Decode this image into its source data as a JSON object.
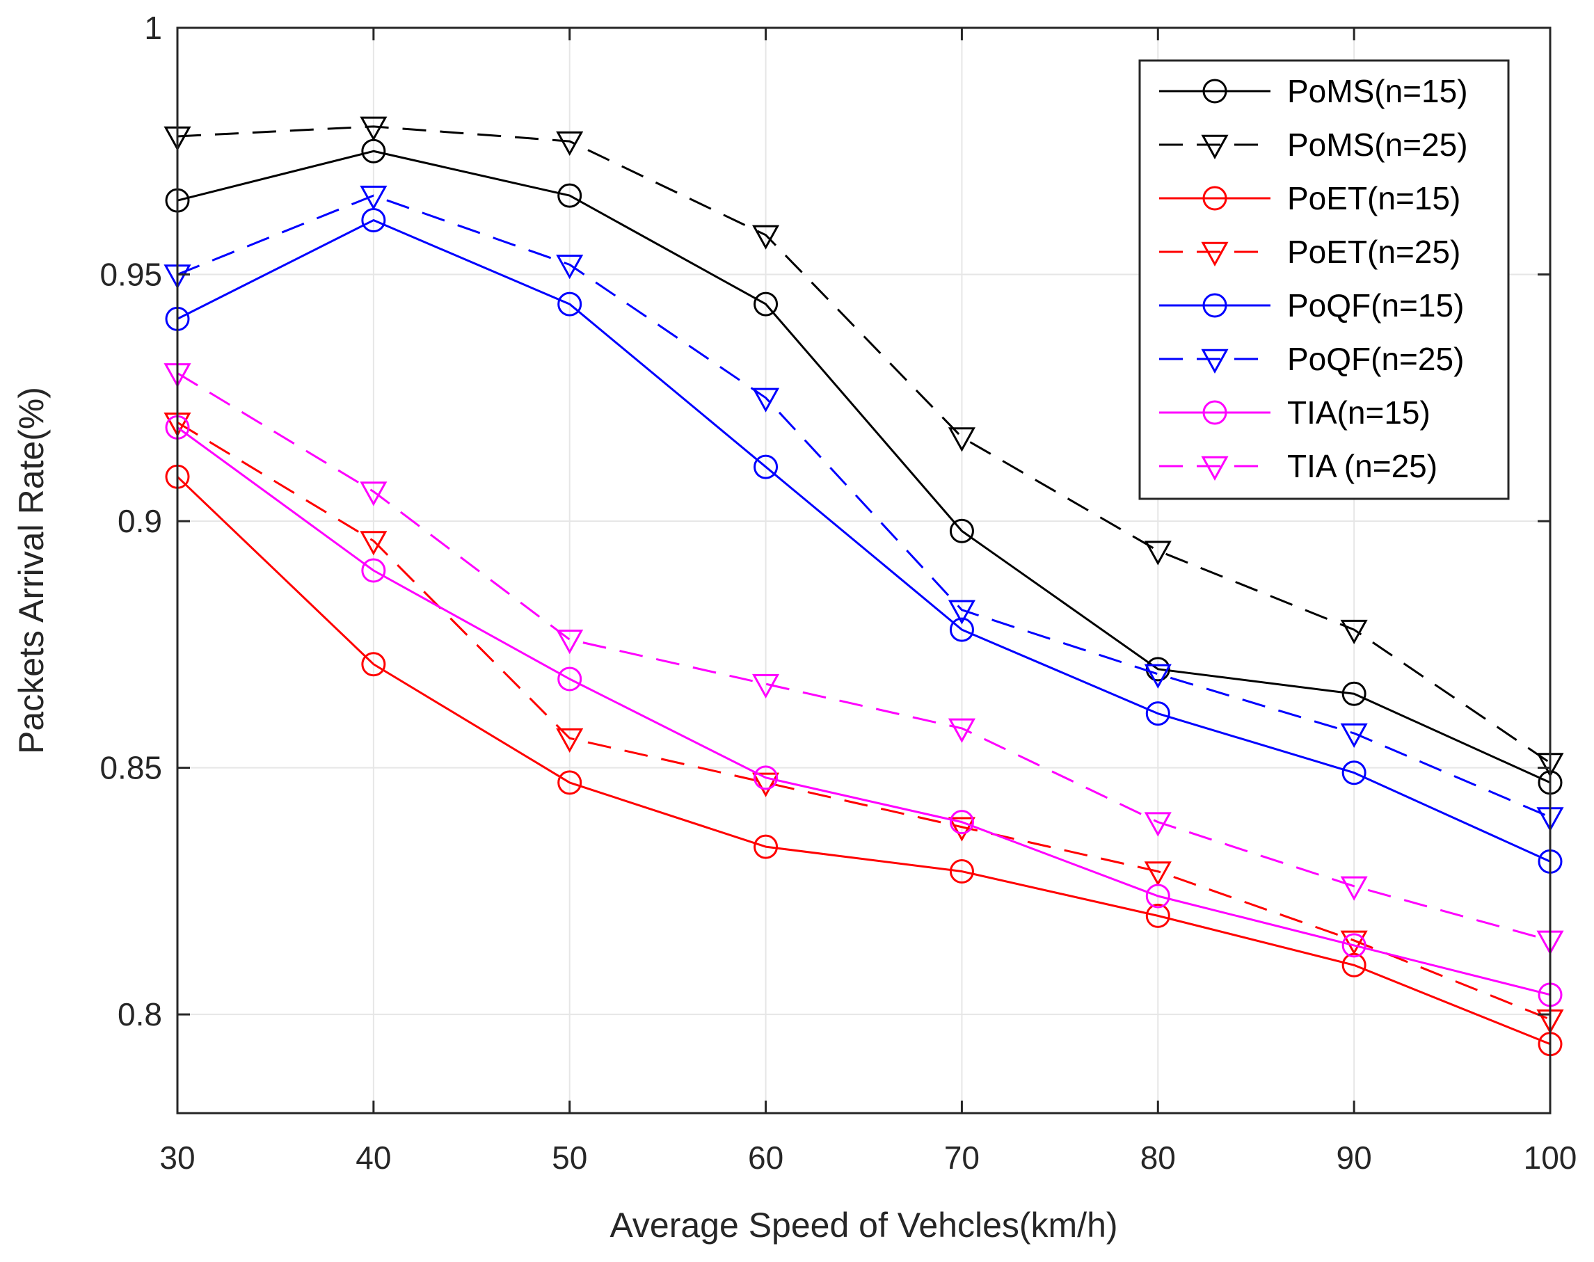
{
  "chart_data": {
    "type": "line",
    "title": "",
    "xlabel": "Average Speed of Vehcles(km/h)",
    "ylabel": "Packets Arrival Rate(%)",
    "x": [
      30,
      40,
      50,
      60,
      70,
      80,
      90,
      100
    ],
    "xlim": [
      30,
      100
    ],
    "ylim": [
      0.78,
      1.0
    ],
    "xticks": [
      30,
      40,
      50,
      60,
      70,
      80,
      90,
      100
    ],
    "yticks": [
      0.8,
      0.85,
      0.9,
      0.95,
      1.0
    ],
    "xtick_labels": [
      "30",
      "40",
      "50",
      "60",
      "70",
      "80",
      "90",
      "100"
    ],
    "ytick_labels": [
      "0.8",
      "0.85",
      "0.9",
      "0.95",
      "1"
    ],
    "grid": true,
    "legend_position": "top-right",
    "series": [
      {
        "name": "PoMS(n=15)",
        "color": "#000000",
        "dash": "solid",
        "marker": "circle",
        "values": [
          0.965,
          0.975,
          0.966,
          0.944,
          0.898,
          0.87,
          0.865,
          0.847
        ]
      },
      {
        "name": "PoMS(n=25)",
        "color": "#000000",
        "dash": "dashed",
        "marker": "triangle-down",
        "values": [
          0.978,
          0.98,
          0.977,
          0.958,
          0.917,
          0.894,
          0.878,
          0.851
        ]
      },
      {
        "name": "PoET(n=15)",
        "color": "#ff0000",
        "dash": "solid",
        "marker": "circle",
        "values": [
          0.909,
          0.871,
          0.847,
          0.834,
          0.829,
          0.82,
          0.81,
          0.794
        ]
      },
      {
        "name": "PoET(n=25)",
        "color": "#ff0000",
        "dash": "dashed",
        "marker": "triangle-down",
        "values": [
          0.92,
          0.896,
          0.856,
          0.847,
          0.838,
          0.829,
          0.815,
          0.799
        ]
      },
      {
        "name": "PoQF(n=15)",
        "color": "#0000ff",
        "dash": "solid",
        "marker": "circle",
        "values": [
          0.941,
          0.961,
          0.944,
          0.911,
          0.878,
          0.861,
          0.849,
          0.831
        ]
      },
      {
        "name": "PoQF(n=25)",
        "color": "#0000ff",
        "dash": "dashed",
        "marker": "triangle-down",
        "values": [
          0.95,
          0.966,
          0.952,
          0.925,
          0.882,
          0.869,
          0.857,
          0.84
        ]
      },
      {
        "name": "TIA(n=15)",
        "color": "#ff00ff",
        "dash": "solid",
        "marker": "circle",
        "values": [
          0.919,
          0.89,
          0.868,
          0.848,
          0.839,
          0.824,
          0.814,
          0.804
        ]
      },
      {
        "name": "TIA (n=25)",
        "color": "#ff00ff",
        "dash": "dashed",
        "marker": "triangle-down",
        "values": [
          0.93,
          0.906,
          0.876,
          0.867,
          0.858,
          0.839,
          0.826,
          0.815
        ]
      }
    ]
  }
}
